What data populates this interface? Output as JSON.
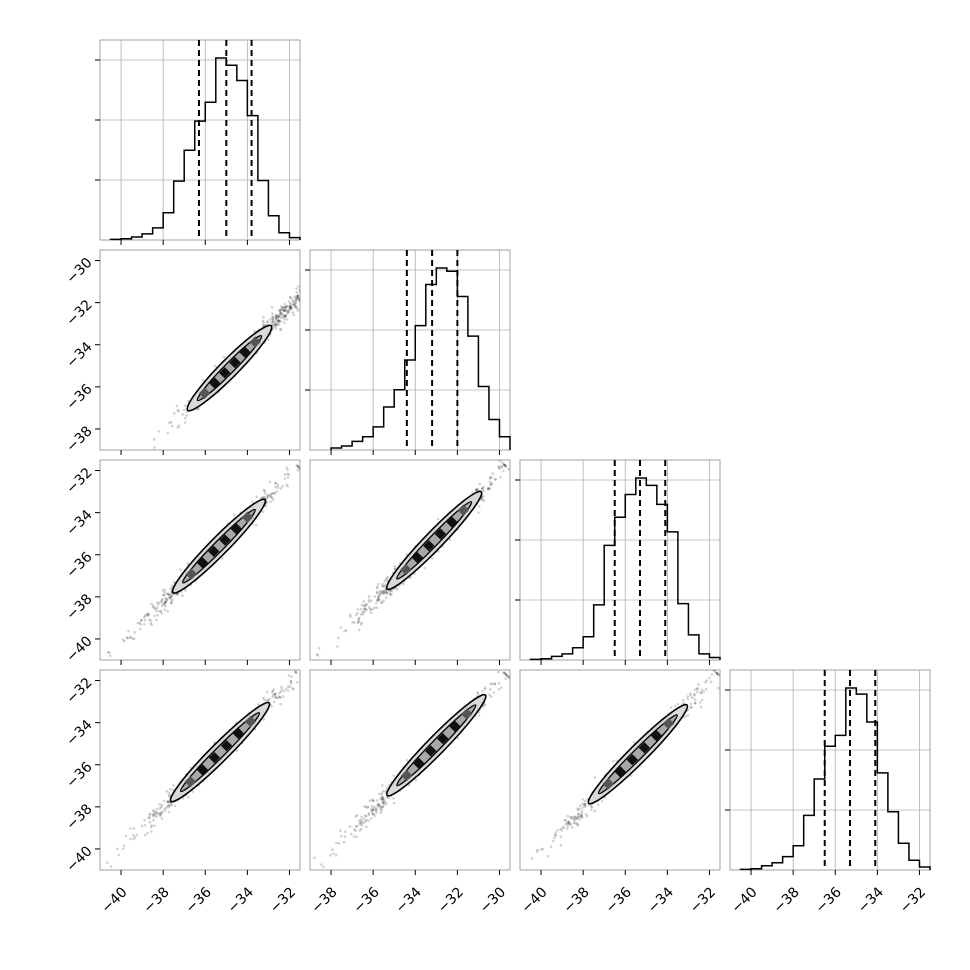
{
  "chart_data": {
    "type": "corner",
    "n_params": 4,
    "grid": true,
    "quantile_lines": "dashed",
    "contour_levels": 2,
    "ranges": [
      [
        -41,
        -31.5
      ],
      [
        -39,
        -29.5
      ],
      [
        -41,
        -31.5
      ],
      [
        -41,
        -31.5
      ]
    ],
    "x_ticks": [
      [
        "−40",
        "−38",
        "−36",
        "−34",
        "−32"
      ],
      [
        "−38",
        "−36",
        "−34",
        "−32",
        "−30"
      ],
      [
        "−40",
        "−38",
        "−36",
        "−34",
        "−32"
      ],
      [
        "−40",
        "−38",
        "−36",
        "−34",
        "−32"
      ]
    ],
    "y_ticks": {
      "row1": [
        "−30",
        "−32",
        "−34",
        "−36",
        "−38"
      ],
      "row2": [
        "−32",
        "−34",
        "−36",
        "−38",
        "−40"
      ],
      "row3": [
        "−32",
        "−34",
        "−36",
        "−38",
        "−40"
      ]
    },
    "histograms": [
      {
        "param": 1,
        "quantiles": [
          -36.3,
          -35.0,
          -33.8
        ],
        "edges": [
          -40.5,
          -40.0,
          -39.5,
          -39.0,
          -38.5,
          -38.0,
          -37.5,
          -37.0,
          -36.5,
          -36.0,
          -35.5,
          -35.0,
          -34.5,
          -34.0,
          -33.5,
          -33.0,
          -32.5,
          -32.0,
          -31.5
        ],
        "counts": [
          1,
          2,
          5,
          10,
          20,
          45,
          97,
          148,
          196,
          227,
          300,
          288,
          263,
          205,
          98,
          40,
          12,
          4
        ]
      },
      {
        "param": 2,
        "quantiles": [
          -34.4,
          -33.2,
          -32.0
        ],
        "edges": [
          -38.0,
          -37.5,
          -37.0,
          -36.5,
          -36.0,
          -35.5,
          -35.0,
          -34.5,
          -34.0,
          -33.5,
          -33.0,
          -32.5,
          -32.0,
          -31.5,
          -31.0,
          -30.5,
          -30.0,
          -29.5
        ],
        "counts": [
          3,
          6,
          13,
          20,
          35,
          65,
          91,
          136,
          188,
          250,
          275,
          270,
          232,
          172,
          96,
          46,
          20
        ]
      },
      {
        "param": 3,
        "quantiles": [
          -36.5,
          -35.3,
          -34.1
        ],
        "edges": [
          -40.5,
          -40.0,
          -39.5,
          -39.0,
          -38.5,
          -38.0,
          -37.5,
          -37.0,
          -36.5,
          -36.0,
          -35.5,
          -35.0,
          -34.5,
          -34.0,
          -33.5,
          -33.0,
          -32.5,
          -32.0,
          -31.5
        ],
        "counts": [
          1,
          2,
          6,
          10,
          20,
          38,
          90,
          187,
          233,
          270,
          297,
          285,
          254,
          209,
          92,
          41,
          10,
          4
        ]
      },
      {
        "param": 4,
        "quantiles": [
          -36.5,
          -35.3,
          -34.1
        ],
        "edges": [
          -40.5,
          -40.0,
          -39.5,
          -39.0,
          -38.5,
          -38.0,
          -37.5,
          -37.0,
          -36.5,
          -36.0,
          -35.5,
          -35.0,
          -34.5,
          -34.0,
          -33.5,
          -33.0,
          -32.5,
          -32.0,
          -31.5
        ],
        "counts": [
          1,
          2,
          7,
          12,
          22,
          40,
          90,
          150,
          204,
          222,
          300,
          290,
          244,
          160,
          96,
          44,
          16,
          5
        ]
      }
    ],
    "pairs": [
      {
        "x_param": 1,
        "y_param": 2,
        "x_range": [
          -38.5,
          -29.7
        ],
        "y_range": [
          -38.8,
          -29.9
        ],
        "contour_x": [
          -36.7,
          -33.0
        ],
        "width": 0.55
      },
      {
        "x_param": 1,
        "y_param": 3,
        "x_range": [
          -40.6,
          -31.6
        ],
        "y_range": [
          -40.9,
          -31.8
        ],
        "contour_x": [
          -37.4,
          -33.3
        ],
        "width": 0.6
      },
      {
        "x_param": 2,
        "y_param": 3,
        "x_range": [
          -38.5,
          -29.7
        ],
        "y_range": [
          -40.9,
          -31.8
        ],
        "contour_x": [
          -35.2,
          -31.0
        ],
        "width": 0.6
      },
      {
        "x_param": 1,
        "y_param": 4,
        "x_range": [
          -40.6,
          -31.6
        ],
        "y_range": [
          -40.7,
          -31.7
        ],
        "contour_x": [
          -37.5,
          -33.1
        ],
        "width": 0.6
      },
      {
        "x_param": 2,
        "y_param": 4,
        "x_range": [
          -38.5,
          -29.7
        ],
        "y_range": [
          -40.7,
          -31.7
        ],
        "contour_x": [
          -35.2,
          -30.8
        ],
        "width": 0.6
      },
      {
        "x_param": 3,
        "y_param": 4,
        "x_range": [
          -40.6,
          -31.6
        ],
        "y_range": [
          -40.7,
          -31.7
        ],
        "contour_x": [
          -37.6,
          -33.2
        ],
        "width": 0.6
      }
    ]
  }
}
